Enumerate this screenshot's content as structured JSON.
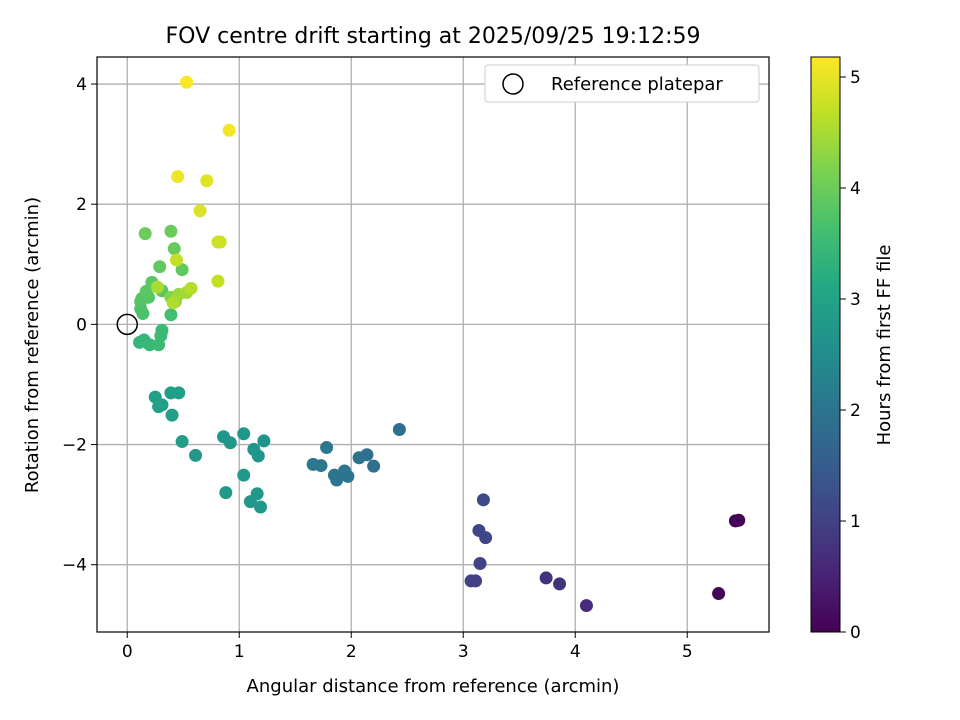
{
  "chart_data": {
    "type": "scatter",
    "title": "FOV centre drift starting at 2025/09/25 19:12:59",
    "xlabel": "Angular distance from reference (arcmin)",
    "ylabel": "Rotation from reference (arcmin)",
    "xlim": [
      -0.27,
      5.73
    ],
    "ylim": [
      -5.12,
      4.45
    ],
    "xticks": [
      0,
      1,
      2,
      3,
      4,
      5
    ],
    "yticks": [
      4,
      2,
      0,
      -2,
      -4
    ],
    "grid": true,
    "legend": {
      "placement": "top-right",
      "entries": [
        {
          "label": "Reference platepar",
          "marker": "open-circle"
        }
      ]
    },
    "reference_point": {
      "x": 0,
      "y": 0
    },
    "colorbar": {
      "label": "Hours from first FF file",
      "range": [
        0,
        5.18
      ],
      "ticks": [
        0,
        1,
        2,
        3,
        4,
        5
      ],
      "colormap": "viridis"
    },
    "points": [
      {
        "x": 5.28,
        "y": -4.48,
        "c": 0.05
      },
      {
        "x": 5.43,
        "y": -3.27,
        "c": 0.05
      },
      {
        "x": 5.46,
        "y": -3.26,
        "c": 0.05
      },
      {
        "x": 4.1,
        "y": -4.68,
        "c": 0.65
      },
      {
        "x": 3.86,
        "y": -4.32,
        "c": 0.75
      },
      {
        "x": 3.74,
        "y": -4.22,
        "c": 0.75
      },
      {
        "x": 3.07,
        "y": -4.27,
        "c": 1.0
      },
      {
        "x": 3.11,
        "y": -4.27,
        "c": 1.0
      },
      {
        "x": 3.15,
        "y": -3.98,
        "c": 1.05
      },
      {
        "x": 3.14,
        "y": -3.43,
        "c": 1.1
      },
      {
        "x": 3.2,
        "y": -3.55,
        "c": 1.1
      },
      {
        "x": 3.18,
        "y": -2.92,
        "c": 1.15
      },
      {
        "x": 2.43,
        "y": -1.75,
        "c": 1.9
      },
      {
        "x": 2.2,
        "y": -2.36,
        "c": 1.9
      },
      {
        "x": 2.14,
        "y": -2.17,
        "c": 1.9
      },
      {
        "x": 2.07,
        "y": -2.22,
        "c": 1.95
      },
      {
        "x": 1.97,
        "y": -2.53,
        "c": 2.0
      },
      {
        "x": 1.94,
        "y": -2.44,
        "c": 2.0
      },
      {
        "x": 1.87,
        "y": -2.59,
        "c": 2.0
      },
      {
        "x": 1.85,
        "y": -2.51,
        "c": 2.0
      },
      {
        "x": 1.78,
        "y": -2.05,
        "c": 2.05
      },
      {
        "x": 1.73,
        "y": -2.35,
        "c": 2.05
      },
      {
        "x": 1.66,
        "y": -2.33,
        "c": 2.05
      },
      {
        "x": 1.22,
        "y": -1.94,
        "c": 2.65
      },
      {
        "x": 1.13,
        "y": -2.08,
        "c": 2.7
      },
      {
        "x": 1.17,
        "y": -2.19,
        "c": 2.7
      },
      {
        "x": 1.04,
        "y": -1.82,
        "c": 2.7
      },
      {
        "x": 0.86,
        "y": -1.87,
        "c": 2.7
      },
      {
        "x": 0.92,
        "y": -1.97,
        "c": 2.75
      },
      {
        "x": 1.04,
        "y": -2.51,
        "c": 2.75
      },
      {
        "x": 1.16,
        "y": -2.82,
        "c": 2.75
      },
      {
        "x": 1.19,
        "y": -3.04,
        "c": 2.75
      },
      {
        "x": 1.1,
        "y": -2.95,
        "c": 2.75
      },
      {
        "x": 0.88,
        "y": -2.8,
        "c": 2.75
      },
      {
        "x": 0.61,
        "y": -2.18,
        "c": 2.75
      },
      {
        "x": 0.49,
        "y": -1.95,
        "c": 2.85
      },
      {
        "x": 0.46,
        "y": -1.14,
        "c": 2.9
      },
      {
        "x": 0.39,
        "y": -1.14,
        "c": 2.9
      },
      {
        "x": 0.4,
        "y": -1.51,
        "c": 2.9
      },
      {
        "x": 0.25,
        "y": -1.21,
        "c": 2.9
      },
      {
        "x": 0.31,
        "y": -1.34,
        "c": 2.9
      },
      {
        "x": 0.28,
        "y": -1.37,
        "c": 2.95
      },
      {
        "x": 0.11,
        "y": -0.3,
        "c": 3.4
      },
      {
        "x": 0.15,
        "y": -0.26,
        "c": 3.4
      },
      {
        "x": 0.2,
        "y": -0.34,
        "c": 3.45
      },
      {
        "x": 0.28,
        "y": -0.34,
        "c": 3.5
      },
      {
        "x": 0.3,
        "y": -0.19,
        "c": 3.5
      },
      {
        "x": 0.31,
        "y": -0.1,
        "c": 3.5
      },
      {
        "x": 0.39,
        "y": 0.16,
        "c": 3.6
      },
      {
        "x": 0.14,
        "y": 0.18,
        "c": 3.7
      },
      {
        "x": 0.12,
        "y": 0.26,
        "c": 3.7
      },
      {
        "x": 0.12,
        "y": 0.38,
        "c": 3.75
      },
      {
        "x": 0.13,
        "y": 0.43,
        "c": 3.8
      },
      {
        "x": 0.19,
        "y": 0.45,
        "c": 3.8
      },
      {
        "x": 0.17,
        "y": 0.55,
        "c": 3.85
      },
      {
        "x": 0.22,
        "y": 0.7,
        "c": 3.85
      },
      {
        "x": 0.31,
        "y": 0.56,
        "c": 3.85
      },
      {
        "x": 0.29,
        "y": 0.96,
        "c": 3.9
      },
      {
        "x": 0.49,
        "y": 0.91,
        "c": 3.9
      },
      {
        "x": 0.42,
        "y": 1.26,
        "c": 3.95
      },
      {
        "x": 0.39,
        "y": 1.55,
        "c": 4.0
      },
      {
        "x": 0.16,
        "y": 1.51,
        "c": 4.0
      },
      {
        "x": 0.39,
        "y": 0.45,
        "c": 4.2
      },
      {
        "x": 0.43,
        "y": 0.38,
        "c": 4.3
      },
      {
        "x": 0.46,
        "y": 0.5,
        "c": 4.4
      },
      {
        "x": 0.53,
        "y": 0.53,
        "c": 4.45
      },
      {
        "x": 0.27,
        "y": 0.62,
        "c": 4.5
      },
      {
        "x": 0.41,
        "y": 0.36,
        "c": 4.55
      },
      {
        "x": 0.57,
        "y": 0.6,
        "c": 4.6
      },
      {
        "x": 0.44,
        "y": 1.07,
        "c": 4.7
      },
      {
        "x": 0.81,
        "y": 0.72,
        "c": 4.7
      },
      {
        "x": 0.81,
        "y": 1.37,
        "c": 4.8
      },
      {
        "x": 0.83,
        "y": 1.37,
        "c": 4.8
      },
      {
        "x": 0.65,
        "y": 1.89,
        "c": 4.9
      },
      {
        "x": 0.71,
        "y": 2.39,
        "c": 4.95
      },
      {
        "x": 0.45,
        "y": 2.46,
        "c": 5.05
      },
      {
        "x": 0.91,
        "y": 3.23,
        "c": 5.1
      },
      {
        "x": 0.53,
        "y": 4.03,
        "c": 5.15
      }
    ]
  }
}
